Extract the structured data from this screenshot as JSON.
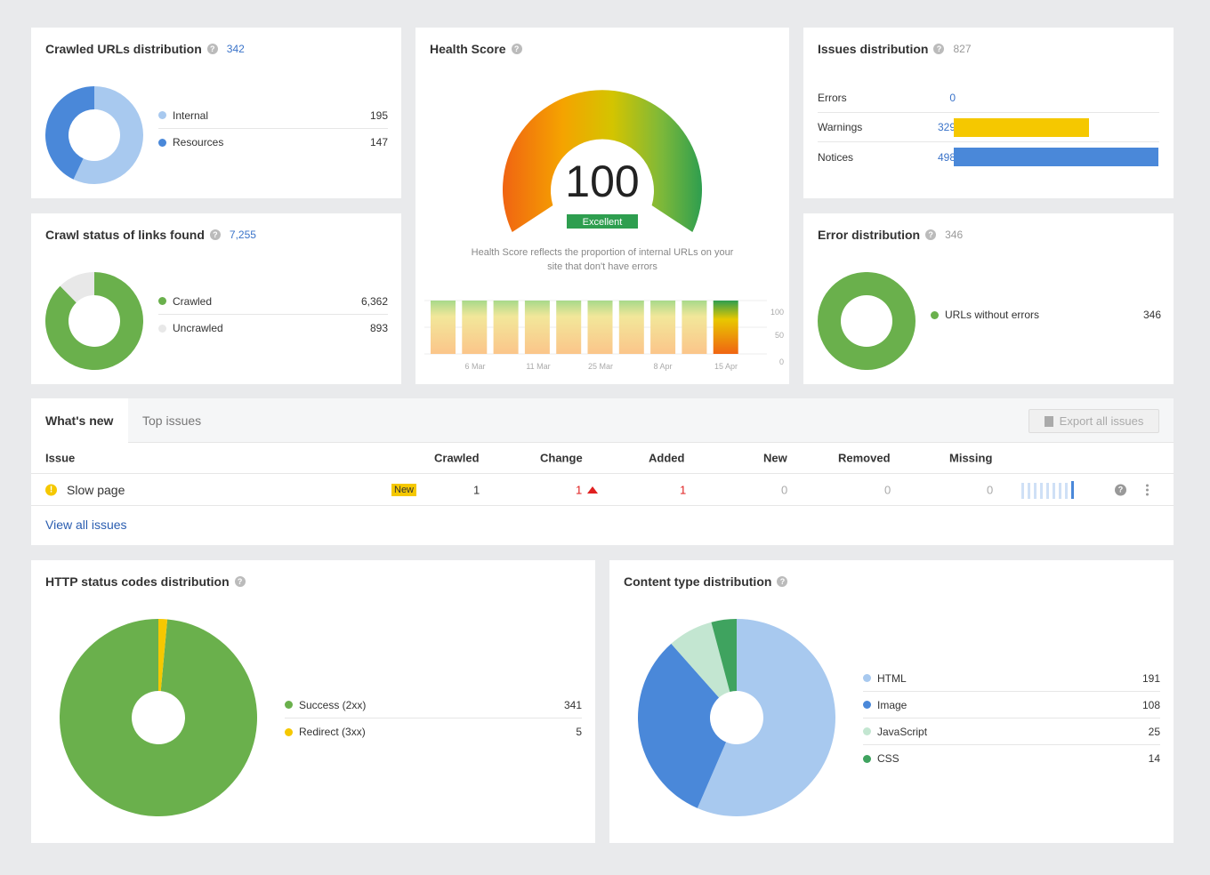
{
  "crawled_urls": {
    "title": "Crawled URLs distribution",
    "count": "342",
    "items": [
      {
        "label": "Internal",
        "value": "195",
        "color": "#a8c9ef"
      },
      {
        "label": "Resources",
        "value": "147",
        "color": "#4a88d9"
      }
    ]
  },
  "crawl_status": {
    "title": "Crawl status of links found",
    "count": "7,255",
    "items": [
      {
        "label": "Crawled",
        "value": "6,362",
        "color": "#6ab04c"
      },
      {
        "label": "Uncrawled",
        "value": "893",
        "color": "#e8e8e8"
      }
    ]
  },
  "health": {
    "title": "Health Score",
    "score": "100",
    "badge": "Excellent",
    "description_line1": "Health Score reflects the proportion of internal URLs on your",
    "description_line2": "site that don't have errors",
    "y_ticks": [
      "100",
      "50",
      "0"
    ],
    "x_ticks": [
      "6 Mar",
      "11 Mar",
      "25 Mar",
      "8 Apr",
      "15 Apr"
    ]
  },
  "issues_distribution": {
    "title": "Issues distribution",
    "count": "827",
    "items": [
      {
        "label": "Errors",
        "value": "0",
        "color": "#e04b3a"
      },
      {
        "label": "Warnings",
        "value": "329",
        "color": "#f5c800"
      },
      {
        "label": "Notices",
        "value": "498",
        "color": "#4a88d9"
      }
    ]
  },
  "error_distribution": {
    "title": "Error distribution",
    "count": "346",
    "items": [
      {
        "label": "URLs without errors",
        "value": "346",
        "color": "#6ab04c"
      }
    ]
  },
  "whats_new": {
    "tabs": [
      "What's new",
      "Top issues"
    ],
    "export_label": "Export all issues",
    "columns": [
      "Issue",
      "Crawled",
      "Change",
      "Added",
      "New",
      "Removed",
      "Missing"
    ],
    "rows": [
      {
        "issue": "Slow page",
        "badge": "New",
        "crawled": "1",
        "change": "1",
        "added": "1",
        "new": "0",
        "removed": "0",
        "missing": "0"
      }
    ],
    "view_all": "View all issues"
  },
  "http_status": {
    "title": "HTTP status codes distribution",
    "items": [
      {
        "label": "Success (2xx)",
        "value": "341",
        "color": "#6ab04c"
      },
      {
        "label": "Redirect (3xx)",
        "value": "5",
        "color": "#f5c800"
      }
    ]
  },
  "content_type": {
    "title": "Content type distribution",
    "items": [
      {
        "label": "HTML",
        "value": "191",
        "color": "#a8c9ef"
      },
      {
        "label": "Image",
        "value": "108",
        "color": "#4a88d9"
      },
      {
        "label": "JavaScript",
        "value": "25",
        "color": "#c3e6d1"
      },
      {
        "label": "CSS",
        "value": "14",
        "color": "#3fa35f"
      }
    ]
  }
}
